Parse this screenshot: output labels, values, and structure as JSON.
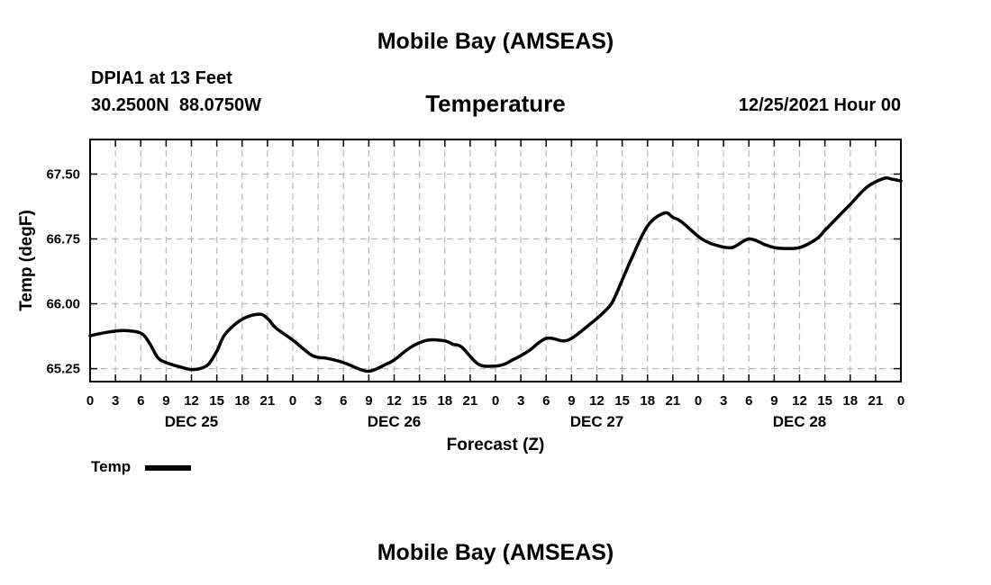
{
  "header": {
    "title": "Mobile Bay (AMSEAS)",
    "station": "DPIA1 at 13 Feet",
    "coords": "30.2500N  88.0750W",
    "variable": "Temperature",
    "date": "12/25/2021 Hour 00"
  },
  "footer": {
    "title": "Mobile Bay (AMSEAS)"
  },
  "legend": {
    "label": "Temp"
  },
  "chart_data": {
    "type": "line",
    "xlabel": "Forecast (Z)",
    "ylabel": "Temp (degF)",
    "ylim": [
      65.1,
      67.9
    ],
    "xlim_hours": [
      0,
      96
    ],
    "yticks": [
      "65.25",
      "66.00",
      "66.75",
      "67.50"
    ],
    "yticks_values": [
      65.25,
      66.0,
      66.75,
      67.5
    ],
    "xtick_labels": [
      "0",
      "3",
      "6",
      "9",
      "12",
      "15",
      "18",
      "21",
      "0",
      "3",
      "6",
      "9",
      "12",
      "15",
      "18",
      "21",
      "0",
      "3",
      "6",
      "9",
      "12",
      "15",
      "18",
      "21",
      "0",
      "3",
      "6",
      "9",
      "12",
      "15",
      "18",
      "21",
      "0"
    ],
    "day_labels": [
      "DEC 25",
      "DEC 26",
      "DEC 27",
      "DEC 28"
    ],
    "grid": true,
    "line_color": "#000000",
    "series": [
      {
        "name": "Temp",
        "x": [
          0,
          2,
          4,
          6,
          7,
          8,
          9,
          11,
          12,
          13,
          14,
          15,
          16,
          18,
          20,
          21,
          22,
          24,
          26,
          27,
          28,
          30,
          32,
          33,
          34,
          35,
          36,
          38,
          40,
          42,
          43,
          44,
          46,
          48,
          49,
          50,
          51,
          52,
          54,
          56,
          57,
          58,
          59,
          60,
          61,
          62,
          64,
          66,
          68,
          69,
          70,
          72,
          73,
          74,
          76,
          78,
          80,
          81,
          82,
          84,
          86,
          87,
          88,
          90,
          92,
          94,
          95,
          96
        ],
        "y": [
          65.63,
          65.67,
          65.69,
          65.66,
          65.55,
          65.38,
          65.32,
          65.26,
          65.24,
          65.25,
          65.3,
          65.45,
          65.65,
          65.82,
          65.88,
          65.83,
          65.72,
          65.58,
          65.42,
          65.38,
          65.37,
          65.32,
          65.24,
          65.22,
          65.25,
          65.3,
          65.35,
          65.5,
          65.58,
          65.57,
          65.53,
          65.5,
          65.3,
          65.28,
          65.3,
          65.35,
          65.4,
          65.46,
          65.6,
          65.57,
          65.6,
          65.67,
          65.75,
          65.83,
          65.92,
          66.05,
          66.5,
          66.9,
          67.05,
          67.0,
          66.95,
          66.78,
          66.72,
          66.68,
          66.65,
          66.75,
          66.68,
          66.65,
          66.64,
          66.65,
          66.75,
          66.85,
          66.95,
          67.15,
          67.35,
          67.45,
          67.44,
          67.42
        ]
      }
    ]
  }
}
